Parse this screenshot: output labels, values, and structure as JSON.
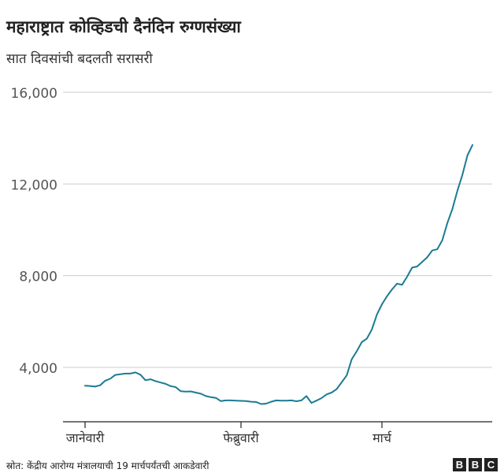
{
  "header": {
    "title": "महाराष्ट्रात कोव्हिडची दैनंदिन रुग्णसंख्या",
    "subtitle": "सात दिवसांची बदलती सरासरी"
  },
  "footer": {
    "source": "स्रोत: केंद्रीय आरोग्य मंत्रालयाची 19 मार्चपर्यंतची आकडेवारी",
    "logo_letters": [
      "B",
      "B",
      "C"
    ]
  },
  "colors": {
    "line": "#1b7b93",
    "grid": "#cccccc",
    "axis": "#222222",
    "tick_text": "#555555"
  },
  "chart_data": {
    "type": "line",
    "title": "महाराष्ट्रात कोव्हिडची दैनंदिन रुग्णसंख्या",
    "subtitle": "सात दिवसांची बदलती सरासरी",
    "xlabel": "",
    "ylabel": "",
    "ylim": [
      2500,
      16500
    ],
    "xlim": [
      "2021-01-01",
      "2021-03-19"
    ],
    "grid": true,
    "y_ticks": [
      {
        "value": 4000,
        "label": "4,000"
      },
      {
        "value": 8000,
        "label": "8,000"
      },
      {
        "value": 12000,
        "label": "12,000"
      },
      {
        "value": 16000,
        "label": "16,000"
      }
    ],
    "x_ticks": [
      {
        "date": "2021-01-01",
        "label": "जानेवारी"
      },
      {
        "date": "2021-02-01",
        "label": "फेब्रुवारी"
      },
      {
        "date": "2021-03-01",
        "label": "मार्च"
      }
    ],
    "series": [
      {
        "x": [
          "2021-01-01",
          "2021-01-02",
          "2021-01-03",
          "2021-01-04",
          "2021-01-05",
          "2021-01-06",
          "2021-01-07",
          "2021-01-08",
          "2021-01-09",
          "2021-01-10",
          "2021-01-11",
          "2021-01-12",
          "2021-01-13",
          "2021-01-14",
          "2021-01-15",
          "2021-01-16",
          "2021-01-17",
          "2021-01-18",
          "2021-01-19",
          "2021-01-20",
          "2021-01-21",
          "2021-01-22",
          "2021-01-23",
          "2021-01-24",
          "2021-01-25",
          "2021-01-26",
          "2021-01-27",
          "2021-01-28",
          "2021-01-29",
          "2021-01-30",
          "2021-01-31",
          "2021-02-01",
          "2021-02-02",
          "2021-02-03",
          "2021-02-04",
          "2021-02-05",
          "2021-02-06",
          "2021-02-07",
          "2021-02-08",
          "2021-02-09",
          "2021-02-10",
          "2021-02-11",
          "2021-02-12",
          "2021-02-13",
          "2021-02-14",
          "2021-02-15",
          "2021-02-16",
          "2021-02-17",
          "2021-02-18",
          "2021-02-19",
          "2021-02-20",
          "2021-02-21",
          "2021-02-22",
          "2021-02-23",
          "2021-02-24",
          "2021-02-25",
          "2021-02-26",
          "2021-02-27",
          "2021-02-28",
          "2021-03-01",
          "2021-03-02",
          "2021-03-03",
          "2021-03-04",
          "2021-03-05",
          "2021-03-06",
          "2021-03-07",
          "2021-03-08",
          "2021-03-09",
          "2021-03-10",
          "2021-03-11",
          "2021-03-12",
          "2021-03-13",
          "2021-03-14",
          "2021-03-15",
          "2021-03-16",
          "2021-03-17",
          "2021-03-18",
          "2021-03-19"
        ],
        "values": [
          3200,
          3190,
          3160,
          3220,
          3420,
          3500,
          3670,
          3700,
          3730,
          3730,
          3780,
          3680,
          3440,
          3480,
          3400,
          3340,
          3280,
          3180,
          3140,
          2960,
          2940,
          2950,
          2900,
          2850,
          2750,
          2700,
          2670,
          2530,
          2560,
          2560,
          2550,
          2540,
          2530,
          2500,
          2490,
          2400,
          2420,
          2500,
          2560,
          2550,
          2550,
          2560,
          2520,
          2560,
          2750,
          2450,
          2550,
          2660,
          2820,
          2900,
          3050,
          3350,
          3650,
          4350,
          4700,
          5100,
          5250,
          5650,
          6300,
          6750,
          7100,
          7400,
          7650,
          7600,
          7950,
          8350,
          8400,
          8600,
          8800,
          9100,
          9150,
          9550,
          10300,
          10900,
          11700,
          12400,
          13250,
          13700
        ]
      }
    ],
    "series_extension_note": ""
  }
}
